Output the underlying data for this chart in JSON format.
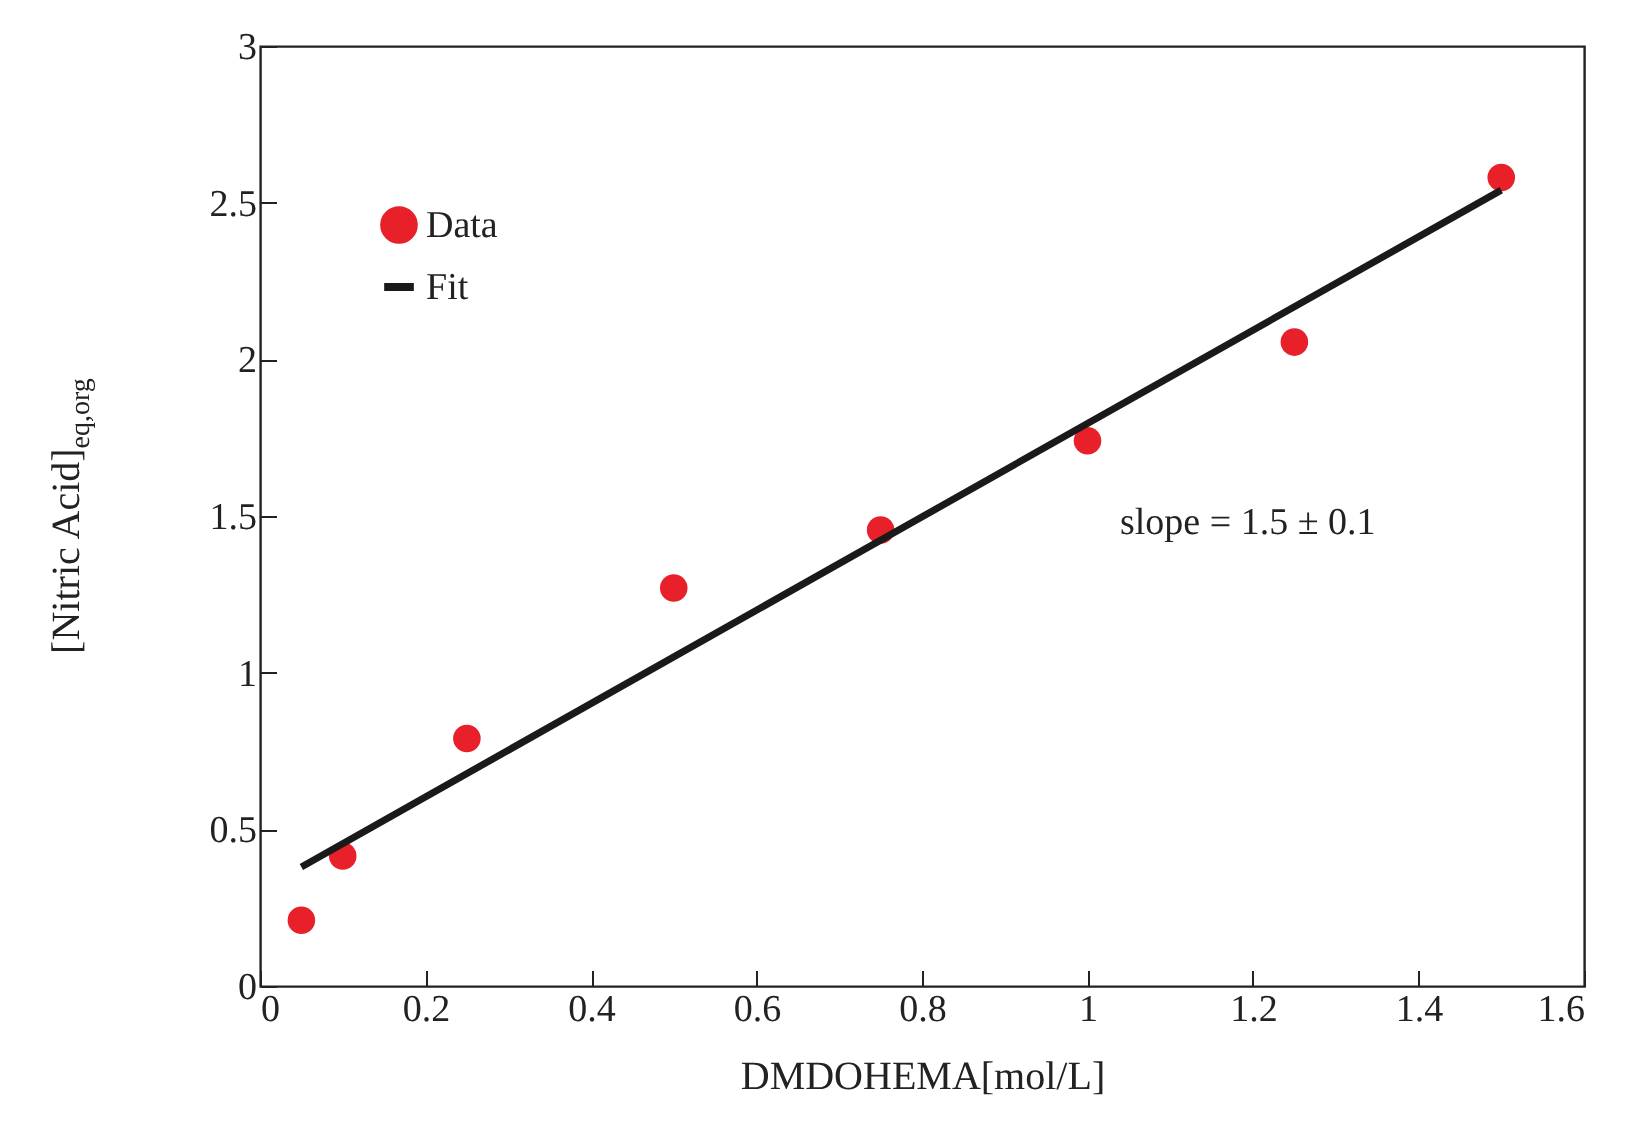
{
  "chart_data": {
    "type": "scatter",
    "xlabel": "DMDOHEMA[mol/L]",
    "ylabel": "[Nitric Acid]$_{eq,org}$",
    "x": [
      0.05,
      0.1,
      0.25,
      0.5,
      0.75,
      1.0,
      1.25,
      1.5
    ],
    "series": [
      {
        "name": "Data",
        "color": "#e8202a",
        "marker": "circle",
        "values": [
          0.21,
          0.415,
          0.79,
          1.27,
          1.455,
          1.74,
          2.055,
          2.58
        ]
      },
      {
        "name": "Fit",
        "type": "line",
        "color": "#1a1a1a",
        "line_style": "solid",
        "x": [
          0.05,
          1.5
        ],
        "values": [
          0.38,
          2.54
        ]
      }
    ],
    "annotations": [
      "slope = 1.5 ± 0.1"
    ],
    "xlim": [
      0,
      1.6
    ],
    "xticks": [
      0,
      0.2,
      0.4,
      0.6,
      0.8,
      1,
      1.2,
      1.4,
      1.6
    ],
    "ylim": [
      0,
      3
    ],
    "yticks": [
      0,
      0.5,
      1,
      1.5,
      2,
      2.5,
      3
    ],
    "grid": false,
    "legend": "top left"
  }
}
